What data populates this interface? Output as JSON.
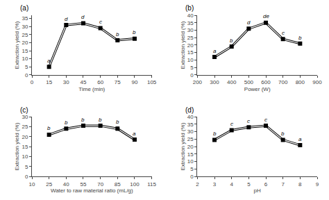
{
  "chart_data": [
    {
      "type": "line",
      "title": "(a)",
      "x": [
        15,
        30,
        45,
        60,
        75,
        90
      ],
      "values": [
        5.0,
        31.0,
        32.0,
        29.0,
        21.5,
        22.5
      ],
      "errors": [
        0.4,
        0.5,
        0.5,
        0.8,
        0.5,
        0.5
      ],
      "annotations": [
        "a",
        "d",
        "d",
        "c",
        "b",
        "b"
      ],
      "x_label": "Time (min)",
      "y_label": "Extraction yield (%)",
      "xlim": [
        0,
        105
      ],
      "xticks": [
        0,
        15,
        30,
        45,
        60,
        75,
        90,
        105
      ],
      "ylim": [
        0,
        37
      ],
      "yticks": [
        0,
        5,
        10,
        15,
        20,
        25,
        30,
        35
      ],
      "color": "black",
      "marker": "square",
      "line_style": "double",
      "grid": false
    },
    {
      "type": "line",
      "title": "(b)",
      "x": [
        300,
        400,
        500,
        600,
        700,
        800
      ],
      "values": [
        12.0,
        19.0,
        31.0,
        35.0,
        24.0,
        21.0
      ],
      "errors": [
        0.4,
        0.5,
        0.6,
        0.6,
        0.8,
        0.5
      ],
      "annotations": [
        "a",
        "b",
        "d",
        "de",
        "c",
        "b"
      ],
      "x_label": "Power (W)",
      "y_label": "Extraction yield (%)",
      "xlim": [
        200,
        900
      ],
      "xticks": [
        200,
        300,
        400,
        500,
        600,
        700,
        800,
        900
      ],
      "ylim": [
        0,
        40
      ],
      "yticks": [
        0,
        5,
        10,
        15,
        20,
        25,
        30,
        35,
        40
      ],
      "color": "black",
      "marker": "square",
      "line_style": "double",
      "grid": false
    },
    {
      "type": "line",
      "title": "(c)",
      "x": [
        25,
        40,
        55,
        70,
        85,
        100
      ],
      "values": [
        21.0,
        24.0,
        25.5,
        25.5,
        24.0,
        18.5
      ],
      "errors": [
        0.5,
        0.5,
        0.5,
        0.5,
        0.8,
        0.5
      ],
      "annotations": [
        "b",
        "b",
        "b",
        "b",
        "b",
        "a"
      ],
      "x_label": "Water to raw material ratio (mL/g)",
      "y_label": "Extraction yield (%)",
      "xlim": [
        10,
        115
      ],
      "xticks": [
        10,
        25,
        40,
        55,
        70,
        85,
        100,
        115
      ],
      "ylim": [
        0,
        30
      ],
      "yticks": [
        0,
        5,
        10,
        15,
        20,
        25,
        30
      ],
      "color": "black",
      "marker": "square",
      "line_style": "double",
      "grid": false
    },
    {
      "type": "line",
      "title": "(d)",
      "x": [
        3,
        4,
        5,
        6,
        7,
        8
      ],
      "values": [
        24.5,
        31.0,
        33.0,
        34.0,
        24.5,
        21.0
      ],
      "errors": [
        0.5,
        0.6,
        0.6,
        0.6,
        0.6,
        0.5
      ],
      "annotations": [
        "b",
        "c",
        "c",
        "c",
        "b",
        "a"
      ],
      "x_label": "pH",
      "y_label": "Extraction yield (%)",
      "xlim": [
        2,
        9
      ],
      "xticks": [
        2,
        3,
        4,
        5,
        6,
        7,
        8,
        9
      ],
      "ylim": [
        0,
        40
      ],
      "yticks": [
        0,
        5,
        10,
        15,
        20,
        25,
        30,
        35,
        40
      ],
      "color": "black",
      "marker": "square",
      "line_style": "double",
      "grid": false
    }
  ]
}
